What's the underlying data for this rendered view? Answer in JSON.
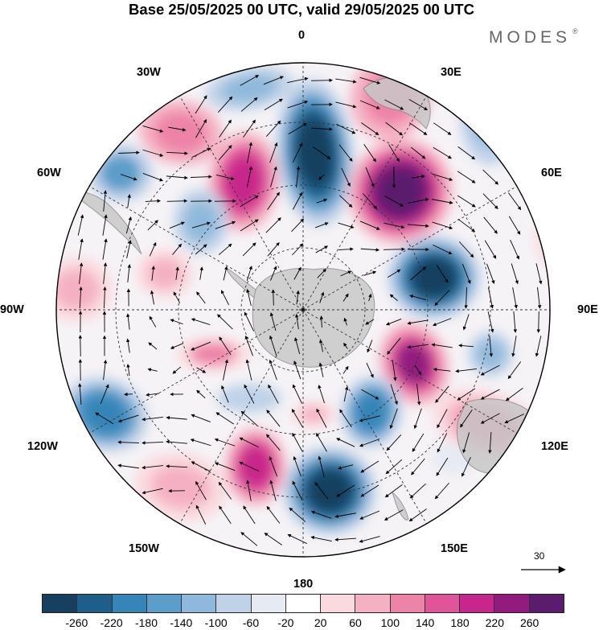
{
  "title": "Base 25/05/2025 00 UTC, valid 29/05/2025 00 UTC",
  "brand": "MODES",
  "brand_mark": "®",
  "map": {
    "projection": "south-polar-stereographic",
    "longitude_labels": {
      "lon_0": "0",
      "lon_30e": "30E",
      "lon_60e": "60E",
      "lon_90e": "90E",
      "lon_120e": "120E",
      "lon_150e": "150E",
      "lon_180": "180",
      "lon_150w": "150W",
      "lon_120w": "120W",
      "lon_90w": "90W",
      "lon_60w": "60W",
      "lon_30w": "30W"
    },
    "reference_vector": "30",
    "colors": {
      "land": "#c8c8c8",
      "coast": "#8a8a8a",
      "grid": "#333333"
    }
  },
  "colorbar": {
    "levels": [
      "-260",
      "-220",
      "-180",
      "-140",
      "-100",
      "-60",
      "-20",
      "20",
      "60",
      "100",
      "140",
      "180",
      "220",
      "260"
    ],
    "colors": [
      "#173f5f",
      "#1d5f8a",
      "#3685b8",
      "#5b9ecb",
      "#8fb9dc",
      "#bfd2e8",
      "#e6eaf3",
      "#ffffff",
      "#fadadf",
      "#f5b1c3",
      "#ee83a8",
      "#e0559a",
      "#c7268a",
      "#931a7f",
      "#5b1b6e"
    ]
  }
}
